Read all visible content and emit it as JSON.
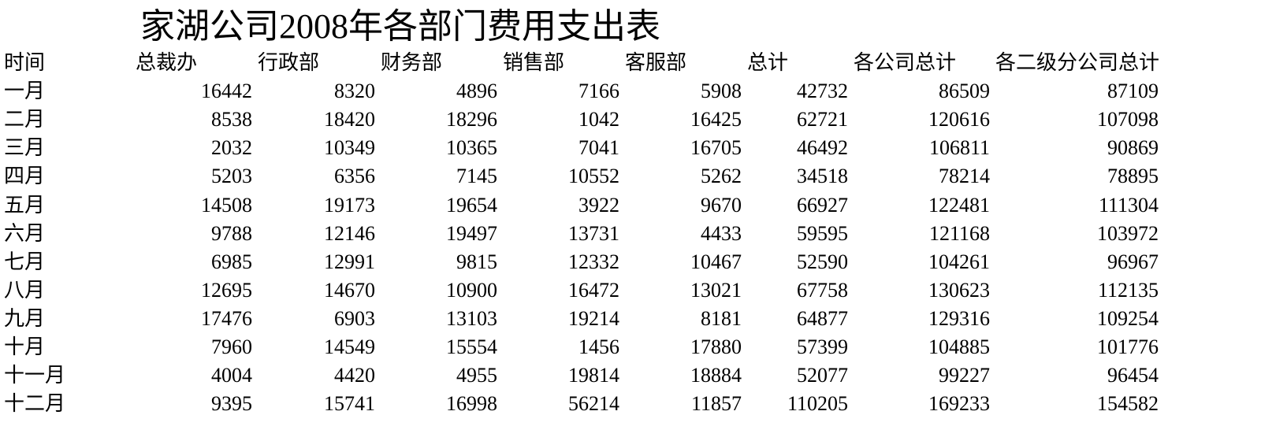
{
  "title": "家湖公司2008年各部门费用支出表",
  "headers": [
    "时间",
    "总裁办",
    "行政部",
    "财务部",
    "销售部",
    "客服部",
    "总计",
    "各公司总计",
    "各二级分公司总计"
  ],
  "rows": [
    [
      "一月",
      "16442",
      "8320",
      "4896",
      "7166",
      "5908",
      "42732",
      "86509",
      "87109"
    ],
    [
      "二月",
      "8538",
      "18420",
      "18296",
      "1042",
      "16425",
      "62721",
      "120616",
      "107098"
    ],
    [
      "三月",
      "2032",
      "10349",
      "10365",
      "7041",
      "16705",
      "46492",
      "106811",
      "90869"
    ],
    [
      "四月",
      "5203",
      "6356",
      "7145",
      "10552",
      "5262",
      "34518",
      "78214",
      "78895"
    ],
    [
      "五月",
      "14508",
      "19173",
      "19654",
      "3922",
      "9670",
      "66927",
      "122481",
      "111304"
    ],
    [
      "六月",
      "9788",
      "12146",
      "19497",
      "13731",
      "4433",
      "59595",
      "121168",
      "103972"
    ],
    [
      "七月",
      "6985",
      "12991",
      "9815",
      "12332",
      "10467",
      "52590",
      "104261",
      "96967"
    ],
    [
      "八月",
      "12695",
      "14670",
      "10900",
      "16472",
      "13021",
      "67758",
      "130623",
      "112135"
    ],
    [
      "九月",
      "17476",
      "6903",
      "13103",
      "19214",
      "8181",
      "64877",
      "129316",
      "109254"
    ],
    [
      "十月",
      "7960",
      "14549",
      "15554",
      "1456",
      "17880",
      "57399",
      "104885",
      "101776"
    ],
    [
      "十一月",
      "4004",
      "4420",
      "4955",
      "19814",
      "18884",
      "52077",
      "99227",
      "96454"
    ],
    [
      "十二月",
      "9395",
      "15741",
      "16998",
      "56214",
      "11857",
      "110205",
      "169233",
      "154582"
    ]
  ]
}
